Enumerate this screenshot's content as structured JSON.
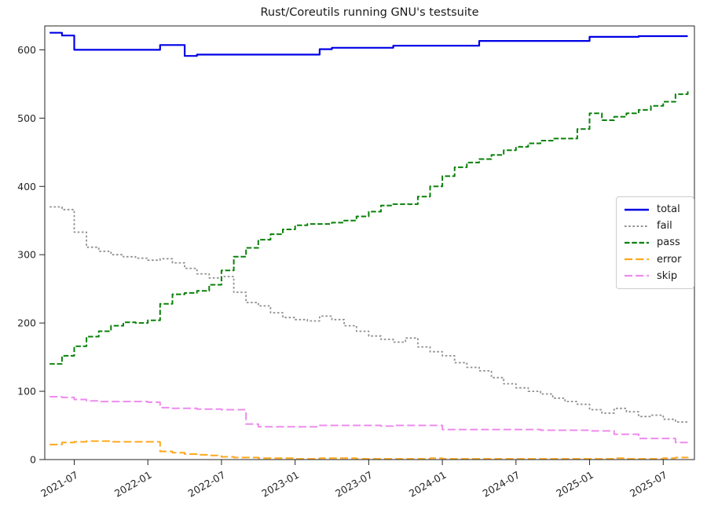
{
  "chart_data": {
    "type": "line",
    "title": "Rust/Coreutils running GNU's testsuite",
    "xlabel": "",
    "ylabel": "",
    "grid": false,
    "legend_position": "center-right",
    "ylim": [
      0,
      635
    ],
    "yticks": [
      0,
      100,
      200,
      300,
      400,
      500,
      600
    ],
    "xticks": [
      "2021-07",
      "2022-01",
      "2022-07",
      "2023-01",
      "2023-07",
      "2024-01",
      "2024-07",
      "2025-01",
      "2025-07"
    ],
    "x": [
      "2021-05",
      "2021-06",
      "2021-07",
      "2021-08",
      "2021-09",
      "2021-10",
      "2021-11",
      "2021-12",
      "2022-01",
      "2022-02",
      "2022-03",
      "2022-04",
      "2022-05",
      "2022-06",
      "2022-07",
      "2022-08",
      "2022-09",
      "2022-10",
      "2022-11",
      "2022-12",
      "2023-01",
      "2023-02",
      "2023-03",
      "2023-04",
      "2023-05",
      "2023-06",
      "2023-07",
      "2023-08",
      "2023-09",
      "2023-10",
      "2023-11",
      "2023-12",
      "2024-01",
      "2024-02",
      "2024-03",
      "2024-04",
      "2024-05",
      "2024-06",
      "2024-07",
      "2024-08",
      "2024-09",
      "2024-10",
      "2024-11",
      "2024-12",
      "2025-01",
      "2025-02",
      "2025-03",
      "2025-04",
      "2025-05",
      "2025-06",
      "2025-07",
      "2025-08",
      "2025-09"
    ],
    "series": [
      {
        "name": "total",
        "color": "#0000e6",
        "linestyle": "solid",
        "values": [
          625,
          621,
          600,
          600,
          600,
          600,
          600,
          600,
          600,
          607,
          607,
          591,
          593,
          593,
          593,
          593,
          593,
          593,
          593,
          593,
          593,
          593,
          601,
          603,
          603,
          603,
          603,
          603,
          606,
          606,
          606,
          606,
          606,
          606,
          606,
          613,
          613,
          613,
          613,
          613,
          613,
          613,
          613,
          613,
          619,
          619,
          619,
          619,
          620,
          620,
          620,
          620,
          620
        ]
      },
      {
        "name": "fail",
        "color": "#909090",
        "linestyle": "dotted",
        "values": [
          370,
          366,
          333,
          311,
          305,
          300,
          297,
          295,
          292,
          294,
          288,
          280,
          272,
          266,
          268,
          245,
          230,
          225,
          215,
          208,
          205,
          203,
          210,
          205,
          196,
          188,
          181,
          176,
          172,
          178,
          165,
          158,
          152,
          142,
          135,
          130,
          120,
          111,
          105,
          100,
          96,
          90,
          85,
          81,
          73,
          68,
          75,
          70,
          63,
          65,
          59,
          55,
          53
        ]
      },
      {
        "name": "pass",
        "color": "#0a810a",
        "linestyle": "dashed",
        "values": [
          140,
          152,
          166,
          180,
          188,
          196,
          201,
          200,
          204,
          228,
          242,
          244,
          247,
          256,
          277,
          297,
          310,
          322,
          330,
          337,
          343,
          345,
          345,
          347,
          350,
          356,
          363,
          372,
          374,
          374,
          385,
          400,
          415,
          428,
          435,
          440,
          446,
          453,
          458,
          463,
          467,
          470,
          470,
          484,
          507,
          497,
          502,
          507,
          512,
          518,
          524,
          535,
          540
        ]
      },
      {
        "name": "error",
        "color": "#ffa81c",
        "linestyle": "longdash",
        "values": [
          22,
          25,
          26,
          27,
          27,
          26,
          26,
          26,
          26,
          12,
          10,
          8,
          7,
          6,
          4,
          3,
          3,
          2,
          2,
          2,
          1,
          1,
          2,
          2,
          2,
          1,
          1,
          1,
          1,
          1,
          1,
          2,
          1,
          1,
          1,
          1,
          1,
          1,
          1,
          1,
          1,
          1,
          1,
          1,
          1,
          1,
          2,
          1,
          1,
          1,
          2,
          3,
          2
        ]
      },
      {
        "name": "skip",
        "color": "#ee8bee",
        "linestyle": "longdash",
        "values": [
          92,
          91,
          88,
          86,
          85,
          85,
          85,
          85,
          84,
          76,
          75,
          75,
          74,
          74,
          73,
          73,
          52,
          48,
          48,
          48,
          48,
          48,
          50,
          50,
          50,
          50,
          50,
          49,
          50,
          50,
          50,
          50,
          44,
          44,
          44,
          44,
          44,
          44,
          44,
          44,
          43,
          43,
          43,
          43,
          42,
          42,
          37,
          37,
          31,
          31,
          31,
          25,
          25
        ]
      }
    ]
  }
}
